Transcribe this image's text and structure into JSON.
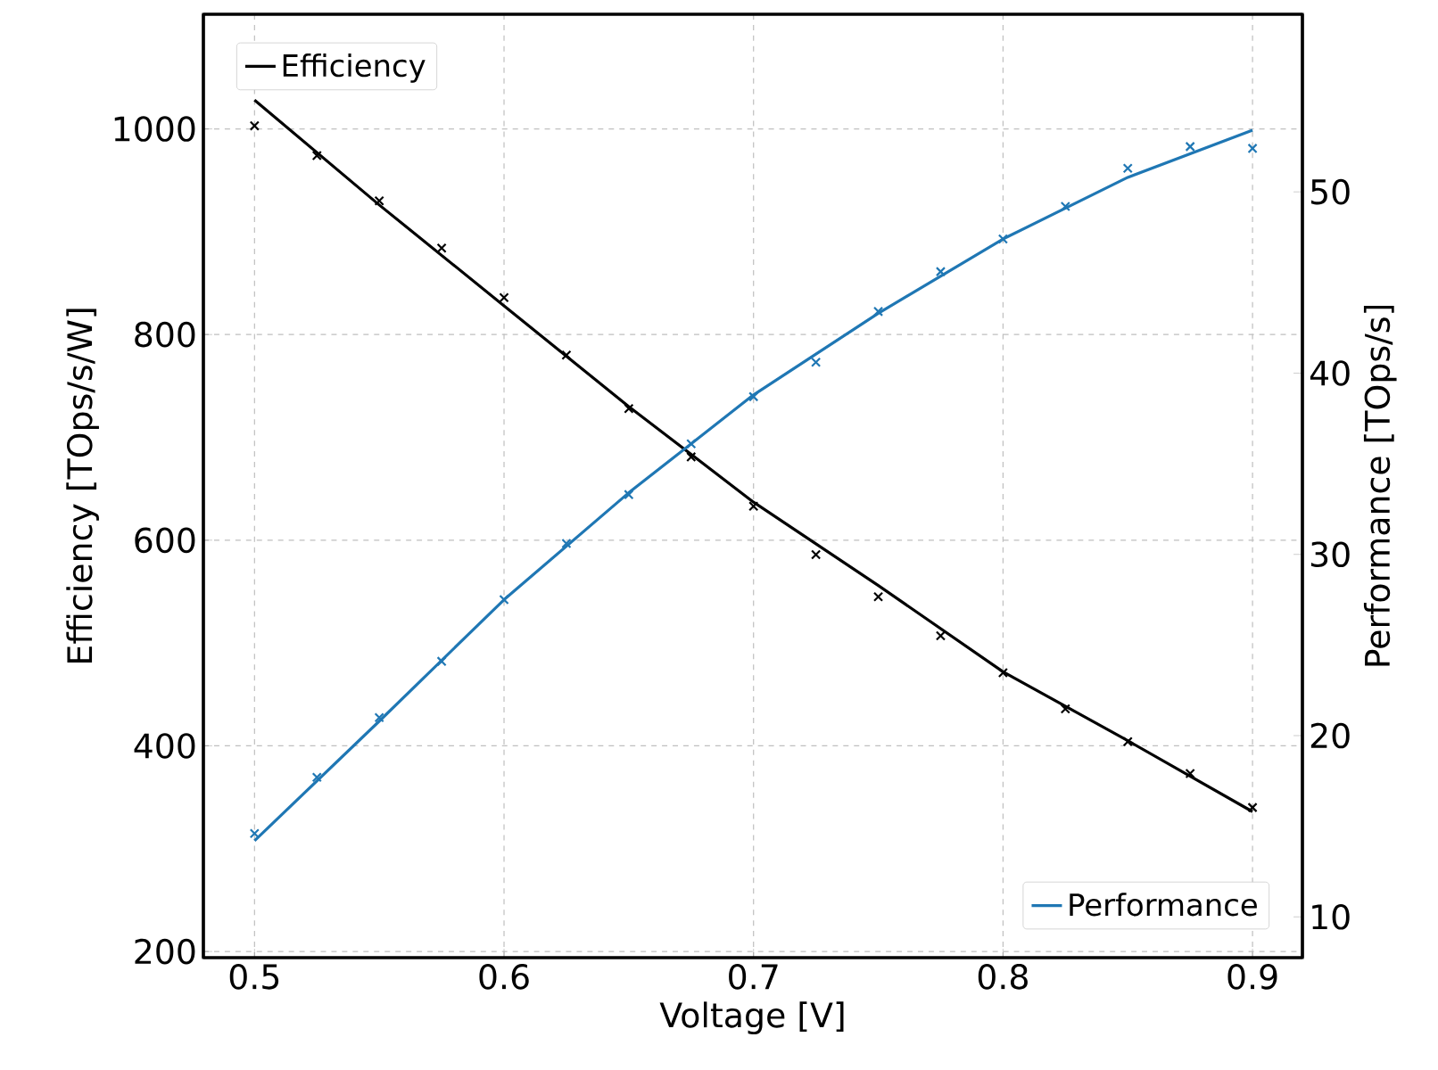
{
  "chart_data": {
    "type": "line",
    "xlabel": "Voltage [V]",
    "ylabel": "Efficiency [TOps/s/W]",
    "y2label": "Performance [TOps/s]",
    "xlim": [
      0.4795,
      0.92
    ],
    "xticks": [
      0.5,
      0.6,
      0.7,
      0.8,
      0.9
    ],
    "ylim": [
      194,
      1111.5
    ],
    "yticks": [
      200,
      400,
      600,
      800,
      1000
    ],
    "y2lim": [
      7.75,
      59.8
    ],
    "y2ticks": [
      10,
      20,
      30,
      40,
      50
    ],
    "grid": true,
    "legend": "top left",
    "series": [
      {
        "name": "Efficiency",
        "color": "#000000",
        "marker": "none",
        "x": [
          0.5,
          0.55,
          0.6,
          0.65,
          0.7,
          0.75,
          0.8,
          0.85,
          0.9
        ],
        "values": [
          1028,
          926,
          828,
          730,
          637,
          556,
          472,
          405,
          336
        ]
      },
      {
        "type": "scatter",
        "color": "#000000",
        "marker": "cross",
        "x": [
          0.5,
          0.525,
          0.55,
          0.575,
          0.6,
          0.625,
          0.65,
          0.675,
          0.7,
          0.725,
          0.75,
          0.775,
          0.8,
          0.825,
          0.85,
          0.875,
          0.9
        ],
        "values": [
          1003,
          974,
          930,
          884,
          836,
          780,
          728,
          681,
          633,
          586,
          545,
          507,
          471,
          436,
          404,
          373,
          340
        ]
      },
      {
        "name": "Performance",
        "axis": "y2",
        "color": "#1f77b4",
        "marker": "none",
        "x": [
          0.5,
          0.55,
          0.6,
          0.65,
          0.7,
          0.75,
          0.8,
          0.85,
          0.9
        ],
        "values": [
          14.2,
          20.8,
          27.5,
          33.4,
          38.8,
          43.3,
          47.4,
          50.8,
          53.4
        ]
      },
      {
        "type": "scatter",
        "axis": "y2",
        "color": "#1f77b4",
        "marker": "cross",
        "x": [
          0.5,
          0.525,
          0.55,
          0.575,
          0.6,
          0.625,
          0.65,
          0.675,
          0.7,
          0.725,
          0.75,
          0.775,
          0.8,
          0.825,
          0.85,
          0.875,
          0.9
        ],
        "values": [
          14.6,
          17.7,
          21.0,
          24.1,
          27.5,
          30.6,
          33.3,
          36.1,
          38.7,
          40.6,
          43.4,
          45.6,
          47.4,
          49.2,
          51.3,
          52.5,
          52.4
        ]
      }
    ]
  }
}
